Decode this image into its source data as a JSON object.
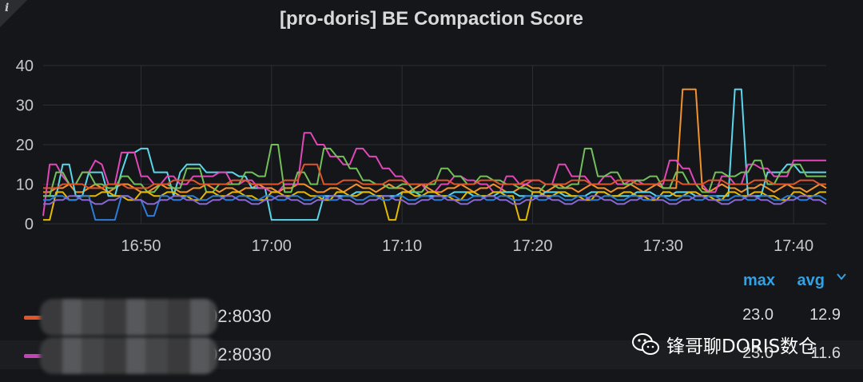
{
  "panel": {
    "title": "[pro-doris] BE Compaction Score",
    "info_icon": "info-icon"
  },
  "colors": {
    "orange": "#f2922b",
    "cyan": "#5ad6eb",
    "pink": "#e048b8",
    "green": "#73bf5a",
    "red": "#e0552b",
    "yellow": "#e6b800",
    "blue": "#2f7cd8",
    "purple": "#8a67d1",
    "legend_accent": "#33a2e5"
  },
  "legend": {
    "headers": {
      "max": "max",
      "avg": "avg"
    },
    "chevron_icon": "chevron-down-icon",
    "rows": [
      {
        "name": "02:8030",
        "color": "#e0552b",
        "max": "23.0",
        "avg": "12.9"
      },
      {
        "name": "02:8030",
        "color": "#c046b4",
        "max": "23.0",
        "avg": "11.6"
      }
    ]
  },
  "watermark": {
    "text": "锋哥聊DORIS数仓",
    "icon": "wechat-icon"
  },
  "chart_data": {
    "type": "line",
    "ylim": [
      0,
      40
    ],
    "yticks": [
      "0",
      "10",
      "20",
      "30",
      "40"
    ],
    "xticks": [
      "16:50",
      "17:00",
      "17:10",
      "17:20",
      "17:30",
      "17:40"
    ],
    "x_start_minutes": -7.5,
    "x_end_minutes": 52.5,
    "x_step_minutes": 0.5,
    "grid": true,
    "series": [
      {
        "color": "#f2922b",
        "values": [
          8,
          8,
          9,
          9,
          10,
          8,
          8,
          9,
          10,
          9,
          8,
          9,
          10,
          10,
          9,
          8,
          8,
          9,
          10,
          9,
          9,
          8,
          8,
          9,
          9,
          10,
          9,
          8,
          9,
          9,
          8,
          9,
          9,
          10,
          9,
          9,
          8,
          9,
          9,
          10,
          10,
          9,
          8,
          8,
          9,
          9,
          8,
          9,
          10,
          9,
          9,
          8,
          9,
          10,
          9,
          9,
          8,
          9,
          10,
          9,
          8,
          8,
          9,
          9,
          10,
          9,
          8,
          9,
          9,
          10,
          9,
          8,
          8,
          9,
          10,
          9,
          9,
          8,
          9,
          10,
          9,
          9,
          8,
          9,
          10,
          9,
          9,
          8,
          9,
          9,
          10,
          9,
          8,
          9,
          10,
          9,
          9,
          9,
          34,
          34,
          34,
          9,
          8,
          9,
          10,
          9,
          9,
          8,
          9,
          9,
          10,
          9,
          8,
          9,
          10,
          9,
          9,
          8,
          9,
          10,
          9
        ]
      },
      {
        "color": "#5ad6eb",
        "values": [
          7,
          7,
          7,
          15,
          15,
          7,
          7,
          13,
          13,
          13,
          7,
          7,
          13,
          18,
          18,
          19,
          19,
          13,
          13,
          13,
          7,
          13,
          15,
          15,
          15,
          13,
          13,
          13,
          13,
          13,
          12,
          12,
          9,
          9,
          9,
          1,
          1,
          1,
          1,
          1,
          1,
          1,
          1,
          7,
          7,
          7,
          7,
          7,
          8,
          8,
          8,
          7,
          7,
          7,
          7,
          8,
          8,
          8,
          7,
          7,
          7,
          7,
          7,
          8,
          8,
          8,
          7,
          7,
          7,
          7,
          8,
          8,
          8,
          7,
          7,
          7,
          7,
          8,
          8,
          8,
          7,
          7,
          7,
          7,
          8,
          8,
          8,
          7,
          7,
          7,
          7,
          8,
          8,
          8,
          7,
          7,
          7,
          8,
          8,
          8,
          7,
          7,
          7,
          7,
          7,
          7,
          34,
          34,
          7,
          7,
          7,
          13,
          13,
          13,
          15,
          15,
          13,
          13,
          13,
          13,
          13
        ]
      },
      {
        "color": "#e048b8",
        "values": [
          2,
          15,
          15,
          12,
          10,
          10,
          13,
          13,
          16,
          15,
          10,
          10,
          18,
          18,
          18,
          12,
          12,
          10,
          10,
          12,
          12,
          10,
          10,
          12,
          12,
          12,
          12,
          13,
          13,
          10,
          10,
          11,
          11,
          9,
          9,
          8,
          8,
          10,
          10,
          10,
          23,
          23,
          20,
          20,
          17,
          17,
          15,
          15,
          19,
          19,
          17,
          17,
          14,
          14,
          12,
          12,
          10,
          10,
          10,
          8,
          8,
          10,
          10,
          12,
          12,
          11,
          11,
          10,
          10,
          8,
          8,
          12,
          12,
          10,
          10,
          11,
          11,
          10,
          10,
          15,
          15,
          12,
          12,
          12,
          10,
          10,
          12,
          12,
          10,
          10,
          11,
          11,
          10,
          10,
          10,
          10,
          16,
          16,
          14,
          14,
          10,
          10,
          8,
          8,
          12,
          12,
          10,
          10,
          15,
          15,
          14,
          14,
          12,
          12,
          12,
          16,
          16,
          16,
          16,
          16,
          16
        ]
      },
      {
        "color": "#73bf5a",
        "values": [
          7,
          7,
          13,
          13,
          10,
          10,
          13,
          13,
          10,
          10,
          9,
          9,
          12,
          12,
          10,
          10,
          8,
          8,
          10,
          10,
          9,
          9,
          14,
          14,
          14,
          8,
          8,
          10,
          10,
          10,
          10,
          13,
          13,
          12,
          12,
          20,
          20,
          8,
          8,
          13,
          13,
          10,
          10,
          19,
          19,
          17,
          17,
          14,
          14,
          11,
          11,
          10,
          10,
          9,
          9,
          10,
          10,
          8,
          8,
          10,
          10,
          14,
          14,
          12,
          12,
          10,
          10,
          12,
          12,
          11,
          11,
          10,
          10,
          9,
          9,
          8,
          8,
          10,
          10,
          9,
          9,
          10,
          10,
          19,
          19,
          12,
          12,
          13,
          13,
          10,
          10,
          11,
          11,
          12,
          12,
          9,
          9,
          13,
          13,
          10,
          10,
          8,
          8,
          13,
          13,
          12,
          12,
          13,
          13,
          16,
          16,
          10,
          10,
          13,
          13,
          15,
          15,
          12,
          12,
          12,
          12
        ]
      },
      {
        "color": "#e0552b",
        "values": [
          9,
          9,
          9,
          10,
          10,
          10,
          10,
          9,
          9,
          9,
          10,
          10,
          10,
          9,
          9,
          9,
          9,
          10,
          10,
          10,
          11,
          11,
          11,
          11,
          10,
          10,
          10,
          10,
          10,
          11,
          11,
          11,
          10,
          10,
          10,
          10,
          10,
          11,
          11,
          11,
          15,
          15,
          15,
          10,
          10,
          10,
          11,
          11,
          11,
          10,
          10,
          10,
          10,
          11,
          11,
          11,
          10,
          10,
          10,
          10,
          11,
          11,
          11,
          10,
          10,
          10,
          10,
          11,
          11,
          11,
          10,
          10,
          10,
          10,
          11,
          11,
          11,
          10,
          10,
          10,
          10,
          11,
          11,
          11,
          10,
          10,
          10,
          10,
          11,
          11,
          11,
          10,
          10,
          10,
          10,
          11,
          11,
          11,
          10,
          10,
          10,
          10,
          11,
          11,
          11,
          10,
          10,
          10,
          10,
          11,
          11,
          11,
          10,
          10,
          10,
          10,
          11,
          11,
          11,
          10,
          10
        ]
      },
      {
        "color": "#e6b800",
        "values": [
          1,
          1,
          8,
          8,
          6,
          6,
          7,
          7,
          7,
          8,
          8,
          7,
          7,
          6,
          6,
          8,
          8,
          7,
          7,
          8,
          8,
          7,
          7,
          6,
          6,
          8,
          8,
          7,
          7,
          8,
          8,
          7,
          7,
          6,
          6,
          8,
          8,
          7,
          7,
          8,
          8,
          7,
          7,
          6,
          6,
          8,
          8,
          7,
          7,
          8,
          8,
          7,
          7,
          1,
          1,
          8,
          8,
          7,
          7,
          8,
          8,
          7,
          7,
          6,
          6,
          8,
          8,
          7,
          7,
          8,
          8,
          7,
          7,
          1,
          1,
          8,
          8,
          7,
          7,
          8,
          8,
          7,
          7,
          6,
          6,
          8,
          8,
          7,
          7,
          8,
          8,
          7,
          7,
          6,
          6,
          8,
          8,
          7,
          7,
          8,
          8,
          7,
          7,
          6,
          6,
          8,
          8,
          7,
          7,
          8,
          8,
          7,
          7,
          6,
          6,
          8,
          8,
          7,
          7,
          8,
          8
        ]
      },
      {
        "color": "#2f7cd8",
        "values": [
          6,
          6,
          7,
          7,
          6,
          6,
          7,
          7,
          1,
          1,
          1,
          1,
          7,
          7,
          6,
          6,
          2,
          2,
          7,
          7,
          6,
          6,
          7,
          7,
          6,
          6,
          7,
          7,
          6,
          6,
          7,
          7,
          6,
          6,
          7,
          7,
          6,
          6,
          7,
          7,
          6,
          6,
          7,
          7,
          6,
          6,
          7,
          7,
          6,
          6,
          7,
          7,
          6,
          6,
          7,
          7,
          6,
          6,
          7,
          7,
          6,
          6,
          7,
          7,
          6,
          6,
          7,
          7,
          6,
          6,
          7,
          7,
          6,
          6,
          7,
          7,
          6,
          6,
          7,
          7,
          6,
          6,
          7,
          7,
          6,
          6,
          7,
          7,
          6,
          6,
          7,
          7,
          6,
          6,
          7,
          7,
          6,
          6,
          7,
          7,
          6,
          6,
          7,
          7,
          6,
          6,
          7,
          7,
          6,
          6,
          7,
          7,
          6,
          6,
          7,
          7,
          6,
          6,
          7,
          7,
          6
        ]
      },
      {
        "color": "#8a67d1",
        "values": [
          5,
          5,
          6,
          6,
          7,
          7,
          6,
          6,
          5,
          5,
          6,
          6,
          7,
          7,
          6,
          6,
          5,
          5,
          6,
          6,
          7,
          7,
          6,
          6,
          5,
          5,
          6,
          6,
          7,
          7,
          6,
          6,
          5,
          5,
          6,
          6,
          7,
          7,
          6,
          6,
          5,
          5,
          6,
          6,
          7,
          7,
          6,
          6,
          5,
          5,
          6,
          6,
          7,
          7,
          6,
          6,
          5,
          5,
          6,
          6,
          7,
          7,
          6,
          6,
          5,
          5,
          6,
          6,
          7,
          7,
          6,
          6,
          5,
          5,
          6,
          6,
          7,
          7,
          6,
          6,
          5,
          5,
          6,
          6,
          7,
          7,
          6,
          6,
          5,
          5,
          6,
          6,
          7,
          7,
          6,
          6,
          5,
          5,
          6,
          6,
          7,
          7,
          6,
          6,
          5,
          5,
          6,
          6,
          7,
          7,
          6,
          6,
          5,
          5,
          6,
          6,
          7,
          7,
          6,
          6,
          5
        ]
      }
    ]
  }
}
